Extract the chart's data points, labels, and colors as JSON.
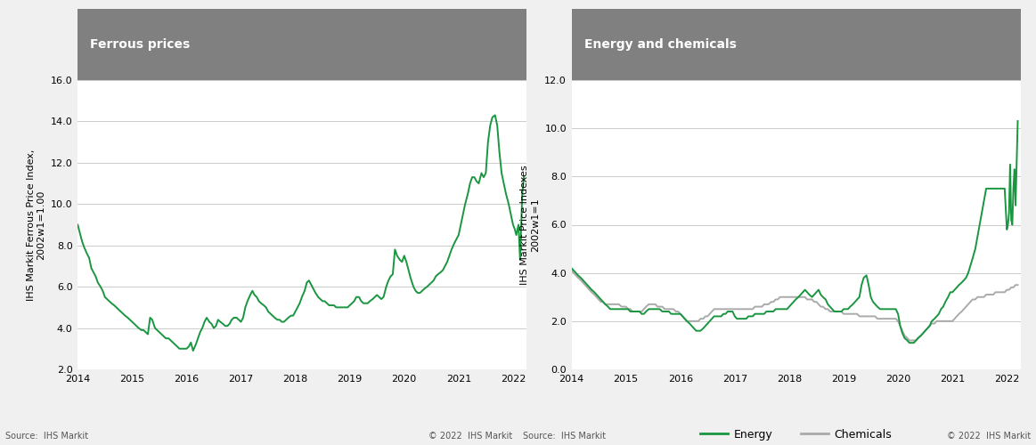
{
  "title1": "Ferrous prices",
  "title2": "Energy and chemicals",
  "ylabel1": "IHS Markit Ferrous Price Index,\n2002w1=1.00",
  "ylabel2": "IHS Markit Price Indexes\n2002w1=1",
  "source_left": "Source:  IHS Markit",
  "source_right": "Source:  IHS Markit",
  "copyright": "© 2022  IHS Markit",
  "title_bg": "#808080",
  "title_color": "#ffffff",
  "line_green": "#1a9641",
  "line_gray": "#aaaaaa",
  "plot_bg": "#ffffff",
  "fig_bg": "#f0f0f0",
  "grid_color": "#cccccc",
  "ylim1": [
    2.0,
    16.0
  ],
  "ylim2": [
    0.0,
    12.0
  ],
  "yticks1": [
    2.0,
    4.0,
    6.0,
    8.0,
    10.0,
    12.0,
    14.0,
    16.0
  ],
  "yticks2": [
    0.0,
    2.0,
    4.0,
    6.0,
    8.0,
    10.0,
    12.0
  ],
  "xtick_years": [
    2014,
    2015,
    2016,
    2017,
    2018,
    2019,
    2020,
    2021,
    2022
  ],
  "ferrous_x": [
    2014.0,
    2014.04,
    2014.08,
    2014.12,
    2014.17,
    2014.21,
    2014.25,
    2014.29,
    2014.33,
    2014.37,
    2014.42,
    2014.46,
    2014.5,
    2014.54,
    2014.58,
    2014.62,
    2014.67,
    2014.71,
    2014.75,
    2014.79,
    2014.83,
    2014.87,
    2014.92,
    2014.96,
    2015.0,
    2015.04,
    2015.08,
    2015.12,
    2015.17,
    2015.21,
    2015.25,
    2015.29,
    2015.33,
    2015.37,
    2015.42,
    2015.46,
    2015.5,
    2015.54,
    2015.58,
    2015.62,
    2015.67,
    2015.71,
    2015.75,
    2015.79,
    2015.83,
    2015.87,
    2015.92,
    2015.96,
    2016.0,
    2016.04,
    2016.08,
    2016.12,
    2016.17,
    2016.21,
    2016.25,
    2016.29,
    2016.33,
    2016.37,
    2016.42,
    2016.46,
    2016.5,
    2016.54,
    2016.58,
    2016.62,
    2016.67,
    2016.71,
    2016.75,
    2016.79,
    2016.83,
    2016.87,
    2016.92,
    2016.96,
    2017.0,
    2017.04,
    2017.08,
    2017.12,
    2017.17,
    2017.21,
    2017.25,
    2017.29,
    2017.33,
    2017.37,
    2017.42,
    2017.46,
    2017.5,
    2017.54,
    2017.58,
    2017.62,
    2017.67,
    2017.71,
    2017.75,
    2017.79,
    2017.83,
    2017.87,
    2017.92,
    2017.96,
    2018.0,
    2018.04,
    2018.08,
    2018.12,
    2018.17,
    2018.21,
    2018.25,
    2018.29,
    2018.33,
    2018.37,
    2018.42,
    2018.46,
    2018.5,
    2018.54,
    2018.58,
    2018.62,
    2018.67,
    2018.71,
    2018.75,
    2018.79,
    2018.83,
    2018.87,
    2018.92,
    2018.96,
    2019.0,
    2019.04,
    2019.08,
    2019.12,
    2019.17,
    2019.21,
    2019.25,
    2019.29,
    2019.33,
    2019.37,
    2019.42,
    2019.46,
    2019.5,
    2019.54,
    2019.58,
    2019.62,
    2019.67,
    2019.71,
    2019.75,
    2019.79,
    2019.83,
    2019.87,
    2019.92,
    2019.96,
    2020.0,
    2020.04,
    2020.08,
    2020.12,
    2020.17,
    2020.21,
    2020.25,
    2020.29,
    2020.33,
    2020.37,
    2020.42,
    2020.46,
    2020.5,
    2020.54,
    2020.58,
    2020.62,
    2020.67,
    2020.71,
    2020.75,
    2020.79,
    2020.83,
    2020.87,
    2020.92,
    2020.96,
    2021.0,
    2021.04,
    2021.08,
    2021.12,
    2021.17,
    2021.21,
    2021.25,
    2021.29,
    2021.33,
    2021.37,
    2021.42,
    2021.46,
    2021.5,
    2021.54,
    2021.58,
    2021.62,
    2021.67,
    2021.71,
    2021.75,
    2021.79,
    2021.83,
    2021.87,
    2021.92,
    2021.96,
    2022.0,
    2022.03,
    2022.06,
    2022.1,
    2022.13,
    2022.17,
    2022.2
  ],
  "ferrous_y": [
    9.0,
    8.6,
    8.2,
    7.9,
    7.6,
    7.4,
    6.9,
    6.7,
    6.5,
    6.2,
    6.0,
    5.8,
    5.5,
    5.4,
    5.3,
    5.2,
    5.1,
    5.0,
    4.9,
    4.8,
    4.7,
    4.6,
    4.5,
    4.4,
    4.3,
    4.2,
    4.1,
    4.0,
    3.9,
    3.9,
    3.8,
    3.7,
    4.5,
    4.4,
    4.0,
    3.9,
    3.8,
    3.7,
    3.6,
    3.5,
    3.5,
    3.4,
    3.3,
    3.2,
    3.1,
    3.0,
    3.0,
    3.0,
    3.0,
    3.1,
    3.3,
    2.9,
    3.2,
    3.5,
    3.8,
    4.0,
    4.3,
    4.5,
    4.3,
    4.2,
    4.0,
    4.1,
    4.4,
    4.3,
    4.2,
    4.1,
    4.1,
    4.2,
    4.4,
    4.5,
    4.5,
    4.4,
    4.3,
    4.5,
    5.0,
    5.3,
    5.6,
    5.8,
    5.6,
    5.5,
    5.3,
    5.2,
    5.1,
    5.0,
    4.8,
    4.7,
    4.6,
    4.5,
    4.4,
    4.4,
    4.3,
    4.3,
    4.4,
    4.5,
    4.6,
    4.6,
    4.8,
    5.0,
    5.2,
    5.5,
    5.8,
    6.2,
    6.3,
    6.1,
    5.9,
    5.7,
    5.5,
    5.4,
    5.3,
    5.3,
    5.2,
    5.1,
    5.1,
    5.1,
    5.0,
    5.0,
    5.0,
    5.0,
    5.0,
    5.0,
    5.1,
    5.2,
    5.3,
    5.5,
    5.5,
    5.3,
    5.2,
    5.2,
    5.2,
    5.3,
    5.4,
    5.5,
    5.6,
    5.5,
    5.4,
    5.5,
    6.0,
    6.3,
    6.5,
    6.6,
    7.8,
    7.5,
    7.3,
    7.2,
    7.5,
    7.2,
    6.8,
    6.4,
    6.0,
    5.8,
    5.7,
    5.7,
    5.8,
    5.9,
    6.0,
    6.1,
    6.2,
    6.3,
    6.5,
    6.6,
    6.7,
    6.8,
    7.0,
    7.2,
    7.5,
    7.8,
    8.1,
    8.3,
    8.5,
    9.0,
    9.5,
    10.0,
    10.5,
    11.0,
    11.3,
    11.3,
    11.1,
    11.0,
    11.5,
    11.3,
    11.5,
    13.0,
    13.8,
    14.2,
    14.3,
    13.8,
    12.5,
    11.5,
    11.0,
    10.5,
    10.0,
    9.5,
    9.0,
    8.8,
    8.5,
    9.0,
    7.3,
    10.5,
    11.3
  ],
  "energy_x": [
    2014.0,
    2014.04,
    2014.08,
    2014.12,
    2014.17,
    2014.21,
    2014.25,
    2014.29,
    2014.33,
    2014.37,
    2014.42,
    2014.46,
    2014.5,
    2014.54,
    2014.58,
    2014.62,
    2014.67,
    2014.71,
    2014.75,
    2014.79,
    2014.83,
    2014.87,
    2014.92,
    2014.96,
    2015.0,
    2015.04,
    2015.08,
    2015.12,
    2015.17,
    2015.21,
    2015.25,
    2015.29,
    2015.33,
    2015.37,
    2015.42,
    2015.46,
    2015.5,
    2015.54,
    2015.58,
    2015.62,
    2015.67,
    2015.71,
    2015.75,
    2015.79,
    2015.83,
    2015.87,
    2015.92,
    2015.96,
    2016.0,
    2016.04,
    2016.08,
    2016.12,
    2016.17,
    2016.21,
    2016.25,
    2016.29,
    2016.33,
    2016.37,
    2016.42,
    2016.46,
    2016.5,
    2016.54,
    2016.58,
    2016.62,
    2016.67,
    2016.71,
    2016.75,
    2016.79,
    2016.83,
    2016.87,
    2016.92,
    2016.96,
    2017.0,
    2017.04,
    2017.08,
    2017.12,
    2017.17,
    2017.21,
    2017.25,
    2017.29,
    2017.33,
    2017.37,
    2017.42,
    2017.46,
    2017.5,
    2017.54,
    2017.58,
    2017.62,
    2017.67,
    2017.71,
    2017.75,
    2017.79,
    2017.83,
    2017.87,
    2017.92,
    2017.96,
    2018.0,
    2018.04,
    2018.08,
    2018.12,
    2018.17,
    2018.21,
    2018.25,
    2018.29,
    2018.33,
    2018.37,
    2018.42,
    2018.46,
    2018.5,
    2018.54,
    2018.58,
    2018.62,
    2018.67,
    2018.71,
    2018.75,
    2018.79,
    2018.83,
    2018.87,
    2018.92,
    2018.96,
    2019.0,
    2019.04,
    2019.08,
    2019.12,
    2019.17,
    2019.21,
    2019.25,
    2019.29,
    2019.33,
    2019.37,
    2019.42,
    2019.46,
    2019.5,
    2019.54,
    2019.58,
    2019.62,
    2019.67,
    2019.71,
    2019.75,
    2019.79,
    2019.83,
    2019.87,
    2019.92,
    2019.96,
    2020.0,
    2020.04,
    2020.08,
    2020.12,
    2020.17,
    2020.21,
    2020.25,
    2020.29,
    2020.33,
    2020.37,
    2020.42,
    2020.46,
    2020.5,
    2020.54,
    2020.58,
    2020.62,
    2020.67,
    2020.71,
    2020.75,
    2020.79,
    2020.83,
    2020.87,
    2020.92,
    2020.96,
    2021.0,
    2021.04,
    2021.08,
    2021.12,
    2021.17,
    2021.21,
    2021.25,
    2021.29,
    2021.33,
    2021.37,
    2021.42,
    2021.46,
    2021.5,
    2021.54,
    2021.58,
    2021.62,
    2021.67,
    2021.71,
    2021.75,
    2021.79,
    2021.83,
    2021.87,
    2021.92,
    2021.96,
    2022.0,
    2022.02,
    2022.04,
    2022.06,
    2022.08,
    2022.1,
    2022.12,
    2022.14,
    2022.16,
    2022.18,
    2022.2
  ],
  "energy_y": [
    4.2,
    4.1,
    4.0,
    3.9,
    3.8,
    3.7,
    3.6,
    3.5,
    3.4,
    3.3,
    3.2,
    3.1,
    3.0,
    2.9,
    2.8,
    2.7,
    2.6,
    2.5,
    2.5,
    2.5,
    2.5,
    2.5,
    2.5,
    2.5,
    2.5,
    2.5,
    2.4,
    2.4,
    2.4,
    2.4,
    2.4,
    2.3,
    2.3,
    2.4,
    2.5,
    2.5,
    2.5,
    2.5,
    2.5,
    2.5,
    2.4,
    2.4,
    2.4,
    2.4,
    2.3,
    2.3,
    2.3,
    2.3,
    2.3,
    2.2,
    2.1,
    2.0,
    1.9,
    1.8,
    1.7,
    1.6,
    1.6,
    1.6,
    1.7,
    1.8,
    1.9,
    2.0,
    2.1,
    2.2,
    2.2,
    2.2,
    2.2,
    2.3,
    2.3,
    2.4,
    2.4,
    2.4,
    2.2,
    2.1,
    2.1,
    2.1,
    2.1,
    2.1,
    2.2,
    2.2,
    2.2,
    2.3,
    2.3,
    2.3,
    2.3,
    2.3,
    2.4,
    2.4,
    2.4,
    2.4,
    2.5,
    2.5,
    2.5,
    2.5,
    2.5,
    2.5,
    2.6,
    2.7,
    2.8,
    2.9,
    3.0,
    3.1,
    3.2,
    3.3,
    3.2,
    3.1,
    3.0,
    3.1,
    3.2,
    3.3,
    3.1,
    3.0,
    2.9,
    2.7,
    2.6,
    2.5,
    2.4,
    2.4,
    2.4,
    2.4,
    2.5,
    2.5,
    2.5,
    2.6,
    2.7,
    2.8,
    2.9,
    3.0,
    3.5,
    3.8,
    3.9,
    3.5,
    3.0,
    2.8,
    2.7,
    2.6,
    2.5,
    2.5,
    2.5,
    2.5,
    2.5,
    2.5,
    2.5,
    2.5,
    2.3,
    1.8,
    1.5,
    1.3,
    1.2,
    1.1,
    1.1,
    1.1,
    1.2,
    1.3,
    1.4,
    1.5,
    1.6,
    1.7,
    1.8,
    2.0,
    2.1,
    2.2,
    2.3,
    2.5,
    2.6,
    2.8,
    3.0,
    3.2,
    3.2,
    3.3,
    3.4,
    3.5,
    3.6,
    3.7,
    3.8,
    4.0,
    4.3,
    4.6,
    5.0,
    5.5,
    6.0,
    6.5,
    7.0,
    7.5,
    7.5,
    7.5,
    7.5,
    7.5,
    7.5,
    7.5,
    7.5,
    7.5,
    5.8,
    6.0,
    6.5,
    8.5,
    6.2,
    6.0,
    7.5,
    8.3,
    6.8,
    8.6,
    10.3
  ],
  "chemicals_x": [
    2014.0,
    2014.04,
    2014.08,
    2014.12,
    2014.17,
    2014.21,
    2014.25,
    2014.29,
    2014.33,
    2014.37,
    2014.42,
    2014.46,
    2014.5,
    2014.54,
    2014.58,
    2014.62,
    2014.67,
    2014.71,
    2014.75,
    2014.79,
    2014.83,
    2014.87,
    2014.92,
    2014.96,
    2015.0,
    2015.04,
    2015.08,
    2015.12,
    2015.17,
    2015.21,
    2015.25,
    2015.29,
    2015.33,
    2015.37,
    2015.42,
    2015.46,
    2015.5,
    2015.54,
    2015.58,
    2015.62,
    2015.67,
    2015.71,
    2015.75,
    2015.79,
    2015.83,
    2015.87,
    2015.92,
    2015.96,
    2016.0,
    2016.04,
    2016.08,
    2016.12,
    2016.17,
    2016.21,
    2016.25,
    2016.29,
    2016.33,
    2016.37,
    2016.42,
    2016.46,
    2016.5,
    2016.54,
    2016.58,
    2016.62,
    2016.67,
    2016.71,
    2016.75,
    2016.79,
    2016.83,
    2016.87,
    2016.92,
    2016.96,
    2017.0,
    2017.04,
    2017.08,
    2017.12,
    2017.17,
    2017.21,
    2017.25,
    2017.29,
    2017.33,
    2017.37,
    2017.42,
    2017.46,
    2017.5,
    2017.54,
    2017.58,
    2017.62,
    2017.67,
    2017.71,
    2017.75,
    2017.79,
    2017.83,
    2017.87,
    2017.92,
    2017.96,
    2018.0,
    2018.04,
    2018.08,
    2018.12,
    2018.17,
    2018.21,
    2018.25,
    2018.29,
    2018.33,
    2018.37,
    2018.42,
    2018.46,
    2018.5,
    2018.54,
    2018.58,
    2018.62,
    2018.67,
    2018.71,
    2018.75,
    2018.79,
    2018.83,
    2018.87,
    2018.92,
    2018.96,
    2019.0,
    2019.04,
    2019.08,
    2019.12,
    2019.17,
    2019.21,
    2019.25,
    2019.29,
    2019.33,
    2019.37,
    2019.42,
    2019.46,
    2019.5,
    2019.54,
    2019.58,
    2019.62,
    2019.67,
    2019.71,
    2019.75,
    2019.79,
    2019.83,
    2019.87,
    2019.92,
    2019.96,
    2020.0,
    2020.04,
    2020.08,
    2020.12,
    2020.17,
    2020.21,
    2020.25,
    2020.29,
    2020.33,
    2020.37,
    2020.42,
    2020.46,
    2020.5,
    2020.54,
    2020.58,
    2020.62,
    2020.67,
    2020.71,
    2020.75,
    2020.79,
    2020.83,
    2020.87,
    2020.92,
    2020.96,
    2021.0,
    2021.04,
    2021.08,
    2021.12,
    2021.17,
    2021.21,
    2021.25,
    2021.29,
    2021.33,
    2021.37,
    2021.42,
    2021.46,
    2021.5,
    2021.54,
    2021.58,
    2021.62,
    2021.67,
    2021.71,
    2021.75,
    2021.79,
    2021.83,
    2021.87,
    2021.92,
    2021.96,
    2022.0,
    2022.04,
    2022.08,
    2022.12,
    2022.16,
    2022.2
  ],
  "chemicals_y": [
    4.1,
    4.0,
    3.9,
    3.8,
    3.7,
    3.6,
    3.5,
    3.4,
    3.3,
    3.2,
    3.1,
    3.0,
    2.9,
    2.8,
    2.8,
    2.7,
    2.7,
    2.7,
    2.7,
    2.7,
    2.7,
    2.7,
    2.6,
    2.6,
    2.6,
    2.5,
    2.5,
    2.4,
    2.4,
    2.4,
    2.4,
    2.4,
    2.5,
    2.6,
    2.7,
    2.7,
    2.7,
    2.7,
    2.6,
    2.6,
    2.6,
    2.5,
    2.5,
    2.5,
    2.5,
    2.5,
    2.4,
    2.4,
    2.3,
    2.2,
    2.1,
    2.0,
    2.0,
    2.0,
    2.0,
    2.0,
    2.0,
    2.1,
    2.1,
    2.2,
    2.2,
    2.3,
    2.4,
    2.5,
    2.5,
    2.5,
    2.5,
    2.5,
    2.5,
    2.5,
    2.5,
    2.5,
    2.5,
    2.5,
    2.5,
    2.5,
    2.5,
    2.5,
    2.5,
    2.5,
    2.5,
    2.6,
    2.6,
    2.6,
    2.6,
    2.7,
    2.7,
    2.7,
    2.8,
    2.8,
    2.9,
    2.9,
    3.0,
    3.0,
    3.0,
    3.0,
    3.0,
    3.0,
    3.0,
    3.0,
    3.0,
    3.0,
    3.0,
    3.0,
    2.9,
    2.9,
    2.9,
    2.8,
    2.8,
    2.7,
    2.6,
    2.6,
    2.5,
    2.5,
    2.4,
    2.4,
    2.4,
    2.4,
    2.4,
    2.4,
    2.3,
    2.3,
    2.3,
    2.3,
    2.3,
    2.3,
    2.3,
    2.2,
    2.2,
    2.2,
    2.2,
    2.2,
    2.2,
    2.2,
    2.2,
    2.1,
    2.1,
    2.1,
    2.1,
    2.1,
    2.1,
    2.1,
    2.1,
    2.1,
    2.0,
    1.8,
    1.6,
    1.4,
    1.3,
    1.2,
    1.2,
    1.2,
    1.2,
    1.3,
    1.4,
    1.5,
    1.6,
    1.7,
    1.8,
    1.9,
    1.9,
    2.0,
    2.0,
    2.0,
    2.0,
    2.0,
    2.0,
    2.0,
    2.0,
    2.1,
    2.2,
    2.3,
    2.4,
    2.5,
    2.6,
    2.7,
    2.8,
    2.9,
    2.9,
    3.0,
    3.0,
    3.0,
    3.0,
    3.1,
    3.1,
    3.1,
    3.1,
    3.2,
    3.2,
    3.2,
    3.2,
    3.2,
    3.3,
    3.3,
    3.4,
    3.4,
    3.5,
    3.5
  ]
}
